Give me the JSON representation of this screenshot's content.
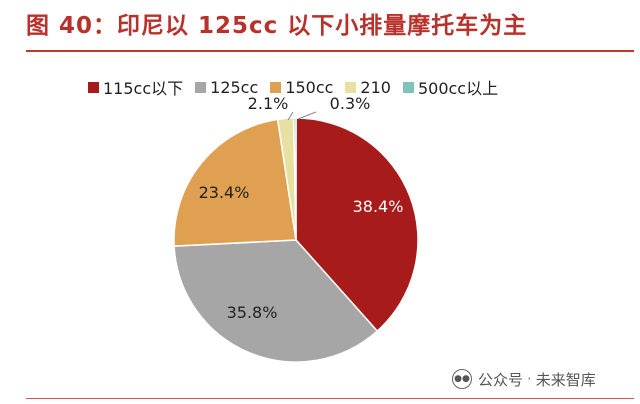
{
  "title": "图 40：印尼以 125cc 以下小排量摩托车为主",
  "chart_data": {
    "type": "pie",
    "title": "图 40：印尼以 125cc 以下小排量摩托车为主",
    "legend_position": "top",
    "categories": [
      "115cc以下",
      "125cc",
      "150cc",
      "210",
      "500cc以上"
    ],
    "values": [
      38.4,
      35.8,
      23.4,
      2.1,
      0.3
    ],
    "labels": [
      "38.4%",
      "35.8%",
      "23.4%",
      "2.1%",
      "0.3%"
    ],
    "colors": [
      "#a71b1b",
      "#a6a6a6",
      "#e0a052",
      "#e8e0a0",
      "#7fc4b6"
    ]
  },
  "watermark": {
    "icon": "wechat-icon",
    "text_left": "公众号",
    "separator": "·",
    "text_right": "未来智库"
  }
}
